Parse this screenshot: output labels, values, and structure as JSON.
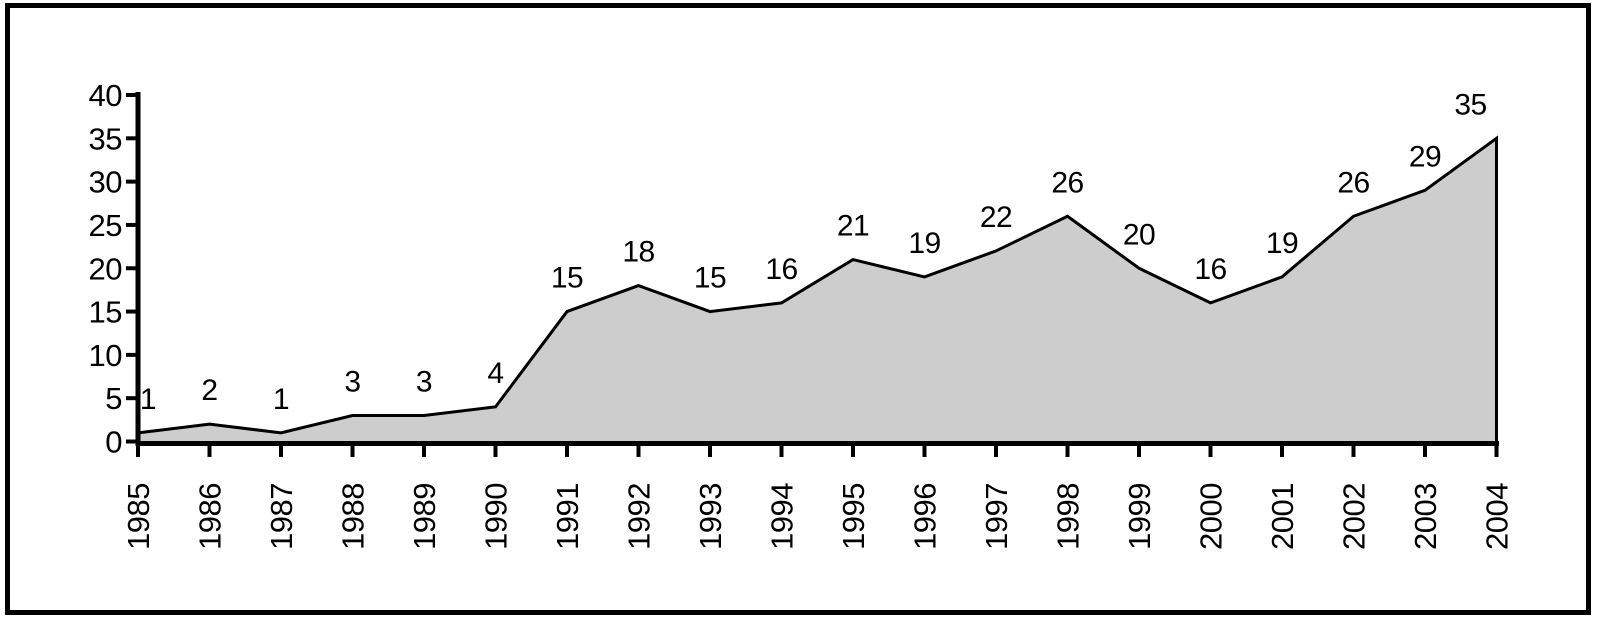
{
  "figure": {
    "background": "#ffffff",
    "frame_border_color": "#000000"
  },
  "chart_data": {
    "type": "area",
    "title": "",
    "xlabel": "",
    "ylabel": "",
    "categories": [
      "1985",
      "1986",
      "1987",
      "1988",
      "1989",
      "1990",
      "1991",
      "1992",
      "1993",
      "1994",
      "1995",
      "1996",
      "1997",
      "1998",
      "1999",
      "2000",
      "2001",
      "2002",
      "2003",
      "2004"
    ],
    "values": [
      1,
      2,
      1,
      3,
      3,
      4,
      15,
      18,
      15,
      16,
      21,
      19,
      22,
      26,
      20,
      16,
      19,
      26,
      29,
      35
    ],
    "show_point_labels": true,
    "point_labels": [
      "1",
      "2",
      "1",
      "3",
      "3",
      "4",
      "15",
      "18",
      "15",
      "16",
      "21",
      "19",
      "22",
      "26",
      "20",
      "16",
      "19",
      "26",
      "29",
      "35"
    ],
    "ylim": [
      0,
      40
    ],
    "yticks": [
      0,
      5,
      10,
      15,
      20,
      25,
      30,
      35,
      40
    ],
    "ytick_labels": [
      "0",
      "5",
      "10",
      "15",
      "20",
      "25",
      "30",
      "35",
      "40"
    ],
    "x_tick_rotation_degrees": -90,
    "grid": false,
    "legend": "none",
    "colors": {
      "area_fill": "#cdcdcd",
      "line": "#000000",
      "axis": "#000000",
      "text": "#000000"
    }
  }
}
